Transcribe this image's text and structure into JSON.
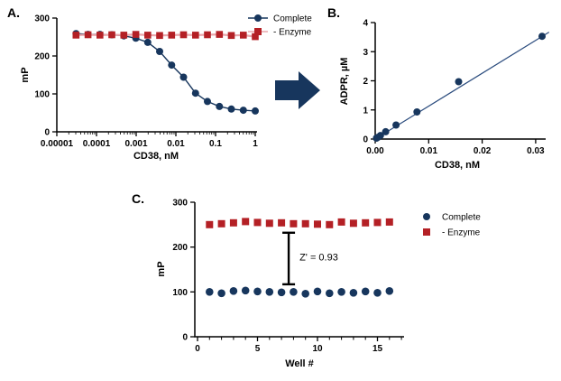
{
  "panels": {
    "a": {
      "label": "A."
    },
    "b": {
      "label": "B."
    },
    "c": {
      "label": "C."
    }
  },
  "colors": {
    "complete_blue": "#17365D",
    "enzyme_red": "#B42025",
    "enzyme_line_pink": "#E9A6AB",
    "fit_line_blue": "#2B4C7E",
    "arrow_navy": "#17365D",
    "axis_black": "#000000"
  },
  "chart_data": [
    {
      "id": "A",
      "type": "scatter",
      "xscale": "log",
      "xlabel": "CD38, nM",
      "ylabel": "mP",
      "xlim": [
        1e-05,
        1
      ],
      "ylim": [
        0,
        300
      ],
      "yticks": [
        0,
        100,
        200,
        300
      ],
      "xticks": [
        1e-05,
        0.0001,
        0.001,
        0.01,
        0.1,
        1
      ],
      "xtick_labels": [
        "0.00001",
        "0.0001",
        "0.001",
        "0.01",
        "0.1",
        "1"
      ],
      "legend_position": "top-right",
      "grid": false,
      "series": [
        {
          "name": "Complete",
          "marker": "circle",
          "color": "#17365D",
          "line_color": "#17365D",
          "x": [
            3.05e-05,
            6.1e-05,
            0.000122,
            0.000244,
            0.000488,
            0.000977,
            0.00195,
            0.0039,
            0.0078,
            0.0156,
            0.03125,
            0.0625,
            0.125,
            0.25,
            0.5,
            1
          ],
          "y": [
            259,
            257,
            257,
            256,
            253,
            247,
            236,
            212,
            176,
            144,
            102,
            80,
            67,
            60,
            57,
            55
          ]
        },
        {
          "name": "- Enzyme",
          "marker": "square",
          "color": "#B42025",
          "line_color": "#E9A6AB",
          "x": [
            3.05e-05,
            6.1e-05,
            0.000122,
            0.000244,
            0.000488,
            0.000977,
            0.00195,
            0.0039,
            0.0078,
            0.0156,
            0.03125,
            0.0625,
            0.125,
            0.25,
            0.5,
            1
          ],
          "y": [
            255,
            256,
            255,
            256,
            255,
            257,
            255,
            254,
            255,
            256,
            255,
            256,
            257,
            254,
            255,
            251
          ]
        }
      ]
    },
    {
      "id": "B",
      "type": "scatter",
      "xscale": "linear",
      "xlabel": "CD38, nM",
      "ylabel": "ADPR, µM",
      "xlim": [
        0,
        0.032
      ],
      "ylim": [
        0,
        4
      ],
      "yticks": [
        0,
        1,
        2,
        3,
        4
      ],
      "xticks": [
        0,
        0.01,
        0.02,
        0.03
      ],
      "xtick_labels": [
        "0.00",
        "0.01",
        "0.02",
        "0.03"
      ],
      "grid": false,
      "series": [
        {
          "name": "ADPR",
          "marker": "circle",
          "color": "#17365D",
          "x": [
            0.00024,
            0.00049,
            0.00098,
            0.00195,
            0.0039,
            0.0078,
            0.0156,
            0.0312
          ],
          "y": [
            0.03,
            0.06,
            0.12,
            0.25,
            0.48,
            0.93,
            1.97,
            3.53
          ]
        }
      ],
      "fit_line": {
        "x": [
          0,
          0.0325
        ],
        "y": [
          0,
          3.67
        ],
        "color": "#2B4C7E"
      }
    },
    {
      "id": "C",
      "type": "scatter",
      "xscale": "linear",
      "xlabel": "Well #",
      "ylabel": "mP",
      "xlim": [
        0,
        17
      ],
      "ylim": [
        0,
        300
      ],
      "yticks": [
        0,
        100,
        200,
        300
      ],
      "xticks": [
        0,
        5,
        10,
        15
      ],
      "xtick_labels": [
        "0",
        "5",
        "10",
        "15"
      ],
      "legend_position": "right",
      "grid": false,
      "series": [
        {
          "name": "Complete",
          "marker": "circle",
          "color": "#17365D",
          "x": [
            1,
            2,
            3,
            4,
            5,
            6,
            7,
            8,
            9,
            10,
            11,
            12,
            13,
            14,
            15,
            16
          ],
          "y": [
            100,
            97,
            102,
            103,
            101,
            100,
            99,
            100,
            96,
            101,
            97,
            100,
            98,
            101,
            98,
            102
          ]
        },
        {
          "name": "- Enzyme",
          "marker": "square",
          "color": "#B42025",
          "x": [
            1,
            2,
            3,
            4,
            5,
            6,
            7,
            8,
            9,
            10,
            11,
            12,
            13,
            14,
            15,
            16
          ],
          "y": [
            250,
            252,
            254,
            257,
            255,
            253,
            254,
            252,
            252,
            251,
            250,
            256,
            253,
            254,
            255,
            256
          ]
        }
      ],
      "annotation": {
        "text": "Z' = 0.93",
        "bracket_x": 7.6,
        "bracket_y": [
          117,
          232
        ]
      }
    }
  ]
}
